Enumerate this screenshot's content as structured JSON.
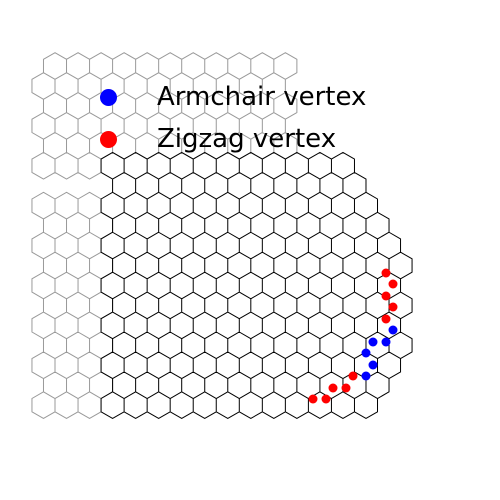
{
  "legend": {
    "items": [
      {
        "label": "Armchair vertex",
        "color": "#0000ff"
      },
      {
        "label": "Zigzag vertex",
        "color": "#ff0000"
      }
    ]
  },
  "colors": {
    "background_lattice": "#999999",
    "inner_lattice": "#000000",
    "armchair": "#0000ff",
    "zigzag": "#ff0000"
  }
}
